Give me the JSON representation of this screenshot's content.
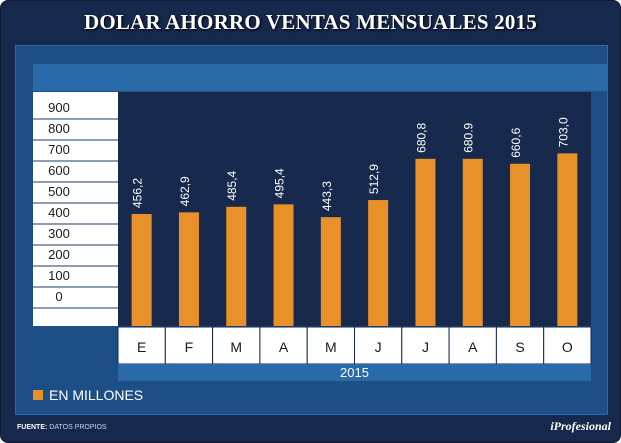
{
  "chart_data": {
    "type": "bar",
    "title": "DOLAR AHORRO VENTAS MENSUALES 2015",
    "categories": [
      "E",
      "F",
      "M",
      "A",
      "M",
      "J",
      "J",
      "A",
      "S",
      "O"
    ],
    "values": [
      456.2,
      462.9,
      485.4,
      495.4,
      443.3,
      512.9,
      680.8,
      680.9,
      660.6,
      703.0
    ],
    "value_labels": [
      "456,2",
      "462,9",
      "485,4",
      "495,4",
      "443,3",
      "512,9",
      "680,8",
      "680.9",
      "660,6",
      "703,0"
    ],
    "y_ticks": [
      "900",
      "800",
      "700",
      "600",
      "500",
      "400",
      "300",
      "200",
      "100",
      "0"
    ],
    "ylim": [
      0,
      900
    ],
    "x_group_label": "2015",
    "legend": "EN MILLONES",
    "bar_color": "#e8902a"
  },
  "footer": {
    "source_label": "FUENTE:",
    "source_text": "DATOS PROPIOS",
    "brand": "iProfesional"
  }
}
